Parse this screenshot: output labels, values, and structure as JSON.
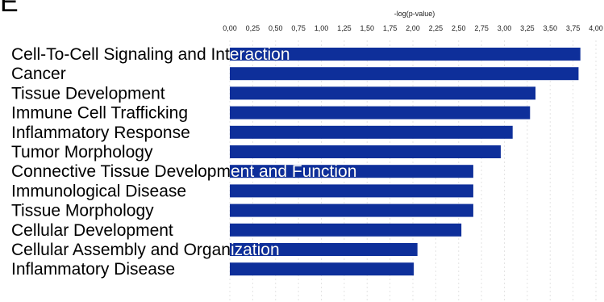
{
  "panel_label": "E",
  "colors": {
    "bar": "#0e2f9a",
    "grid": "#e3e3e3",
    "label": "#000000",
    "label_on_bar": "#ffffff"
  },
  "chart_data": {
    "type": "bar",
    "orientation": "horizontal",
    "title": "",
    "xlabel": "-log(p-value)",
    "ylabel": "",
    "xlim": [
      0,
      4
    ],
    "x_axis_position": "top",
    "grid": true,
    "tick_values": [
      0,
      0.25,
      0.5,
      0.75,
      1,
      1.25,
      1.5,
      1.75,
      2,
      2.25,
      2.5,
      2.75,
      3,
      3.25,
      3.5,
      3.75,
      4
    ],
    "tick_labels": [
      "0,00",
      "0,25",
      "0,50",
      "0,75",
      "1,00",
      "1,25",
      "1,50",
      "1,75",
      "2,00",
      "2,25",
      "2,50",
      "2,75",
      "3,00",
      "3,25",
      "3,50",
      "3,75",
      "4,00"
    ],
    "categories": [
      "Cell-To-Cell Signaling and Interaction",
      "Cancer",
      "Tissue Development",
      "Immune Cell Trafficking",
      "Inflammatory Response",
      "Tumor Morphology",
      "Connective Tissue Development and Function",
      "Immunological Disease",
      "Tissue Morphology",
      "Cellular Development",
      "Cellular Assembly and Organization",
      "Inflammatory Disease"
    ],
    "values": [
      3.83,
      3.81,
      3.34,
      3.28,
      3.09,
      2.96,
      2.66,
      2.66,
      2.66,
      2.53,
      2.05,
      2.01
    ]
  }
}
